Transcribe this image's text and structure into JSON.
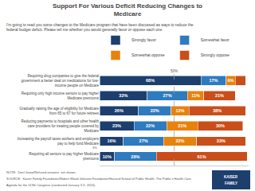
{
  "chart_data": {
    "type": "bar",
    "orientation": "horizontal",
    "stacked": true,
    "title": "Support For Various Deficit Reducing Changes to\nMedicare",
    "subtitle": "I'm going to read you some changes to the Medicare program that have been discussed as ways to reduce the\nfederal budget deficit. Please tell me whether you would generally favor or oppose each one.",
    "categories": [
      "Requiring drug companies to give the federal\ngovernment a better deal on medications for low-\nincome people on Medicare",
      "Requiring only high income seniors to pay higher\nMedicare premiums",
      "Gradually raising the age of eligibility for Medicare\nfrom 65 to 67 for future retirees",
      "Reducing payments to hospitals and other health\ncare providers for treating people covered by\nMedicare",
      "Increasing the payroll taxes workers and employers\npay to help fund Medicare",
      "Requiring all seniors to pay higher Medicare\npremiums"
    ],
    "series": [
      {
        "name": "Strongly favor",
        "color": "#1c3f6e",
        "values": [
          68,
          32,
          26,
          23,
          16,
          10
        ],
        "value_labels": [
          "68%",
          "32%",
          "26%",
          "23%",
          "16%",
          "10%"
        ]
      },
      {
        "name": "Somewhat favor",
        "color": "#2e7bbf",
        "values": [
          17,
          27,
          22,
          22,
          27,
          28
        ],
        "value_labels": [
          "17%",
          "27%",
          "22%",
          "22%",
          "27%",
          "28%"
        ]
      },
      {
        "name": "Somewhat oppose",
        "color": "#e8820c",
        "values": [
          6,
          11,
          12,
          21,
          22,
          0
        ],
        "value_labels": [
          "6%",
          "11%",
          "12%",
          "21%",
          "22%",
          null
        ]
      },
      {
        "name": "Strongly oppose",
        "color": "#c94e1a",
        "values": [
          7,
          21,
          38,
          30,
          33,
          61
        ],
        "value_labels": [
          null,
          "21%",
          "38%",
          "30%",
          "33%",
          "61%"
        ]
      }
    ],
    "xlim": [
      0,
      100
    ],
    "tick_labels": "y",
    "grid": false,
    "legend": "top left",
    "data_labels": true,
    "annotations": [
      {
        "text": "3%",
        "x": -0.5,
        "y": 4.42
      }
    ],
    "reference_line": {
      "x": 50,
      "label": "50%"
    },
    "notes": [
      "NOTE:  Don't know/Refused answers  not shown.",
      "SOURCE:  Kaiser Family Foundation/Robert Wood Johnson Foundation/Harvard School of Public Health, The Public's Health Care",
      "Agenda for the 113th Congress (conducted January 3-9, 2013)."
    ],
    "logo": [
      "KAISER",
      "FAMILY"
    ]
  }
}
